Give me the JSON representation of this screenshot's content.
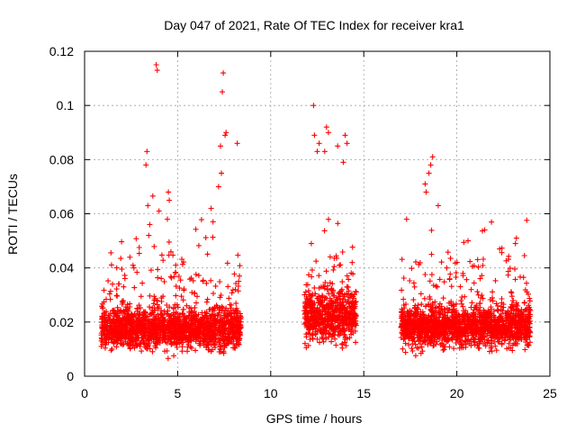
{
  "chart_data": {
    "type": "scatter",
    "title": "Day 047 of 2021, Rate Of TEC Index for receiver kra1",
    "xlabel": "GPS time / hours",
    "ylabel": "ROTI / TECUs",
    "xlim": [
      0,
      25
    ],
    "ylim": [
      0,
      0.12
    ],
    "xticks": [
      "0",
      "5",
      "10",
      "15",
      "20",
      "25"
    ],
    "yticks": [
      "0",
      "0.02",
      "0.04",
      "0.06",
      "0.08",
      "0.1",
      "0.12"
    ],
    "grid": true,
    "marker": "plus",
    "series": [
      {
        "name": "kra1",
        "color": "#ff0000",
        "segments": [
          {
            "start": 0.9,
            "end": 8.4,
            "base": 0.0175,
            "spread": 0.007
          },
          {
            "start": 11.8,
            "end": 14.6,
            "base": 0.022,
            "spread": 0.009
          },
          {
            "start": 17.0,
            "end": 23.95,
            "base": 0.0185,
            "spread": 0.007
          }
        ],
        "outliers": [
          {
            "x": 3.85,
            "y": 0.115
          },
          {
            "x": 3.9,
            "y": 0.113
          },
          {
            "x": 7.45,
            "y": 0.112
          },
          {
            "x": 7.4,
            "y": 0.105
          },
          {
            "x": 12.3,
            "y": 0.1
          },
          {
            "x": 13.0,
            "y": 0.092
          },
          {
            "x": 13.1,
            "y": 0.09
          },
          {
            "x": 7.6,
            "y": 0.09
          },
          {
            "x": 7.55,
            "y": 0.089
          },
          {
            "x": 8.2,
            "y": 0.086
          },
          {
            "x": 7.3,
            "y": 0.085
          },
          {
            "x": 3.35,
            "y": 0.083
          },
          {
            "x": 3.3,
            "y": 0.078
          },
          {
            "x": 18.7,
            "y": 0.081
          },
          {
            "x": 18.6,
            "y": 0.078
          },
          {
            "x": 18.5,
            "y": 0.075
          },
          {
            "x": 12.35,
            "y": 0.089
          },
          {
            "x": 12.5,
            "y": 0.083
          },
          {
            "x": 13.6,
            "y": 0.085
          },
          {
            "x": 14.0,
            "y": 0.089
          },
          {
            "x": 14.1,
            "y": 0.086
          },
          {
            "x": 13.9,
            "y": 0.079
          },
          {
            "x": 12.6,
            "y": 0.086
          },
          {
            "x": 12.9,
            "y": 0.083
          },
          {
            "x": 7.2,
            "y": 0.07
          },
          {
            "x": 7.35,
            "y": 0.075
          },
          {
            "x": 4.5,
            "y": 0.068
          },
          {
            "x": 4.55,
            "y": 0.065
          },
          {
            "x": 3.4,
            "y": 0.063
          },
          {
            "x": 4.0,
            "y": 0.061
          },
          {
            "x": 6.8,
            "y": 0.062
          },
          {
            "x": 6.9,
            "y": 0.057
          },
          {
            "x": 18.3,
            "y": 0.071
          },
          {
            "x": 18.35,
            "y": 0.068
          },
          {
            "x": 17.3,
            "y": 0.058
          },
          {
            "x": 19.0,
            "y": 0.063
          },
          {
            "x": 2.6,
            "y": 0.041
          },
          {
            "x": 2.65,
            "y": 0.04
          },
          {
            "x": 3.5,
            "y": 0.056
          },
          {
            "x": 3.45,
            "y": 0.052
          },
          {
            "x": 4.45,
            "y": 0.058
          },
          {
            "x": 1.5,
            "y": 0.034
          },
          {
            "x": 2.1,
            "y": 0.033
          },
          {
            "x": 21.5,
            "y": 0.054
          },
          {
            "x": 23.2,
            "y": 0.051
          },
          {
            "x": 23.15,
            "y": 0.049
          },
          {
            "x": 22.3,
            "y": 0.047
          },
          {
            "x": 20.6,
            "y": 0.05
          }
        ]
      }
    ]
  }
}
